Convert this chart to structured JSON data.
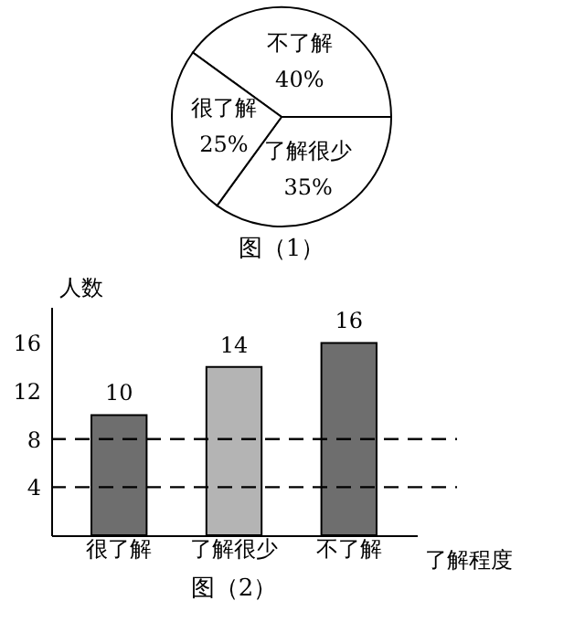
{
  "chart_data": [
    {
      "type": "pie",
      "title": "图（1）",
      "categories": [
        "不了解",
        "了解很少",
        "很了解"
      ],
      "values": [
        40,
        35,
        25
      ],
      "value_labels": [
        "40%",
        "35%",
        "25%"
      ],
      "colors": [
        "#ffffff",
        "#ffffff",
        "#ffffff"
      ]
    },
    {
      "type": "bar",
      "title": "图（2）",
      "xlabel": "了解程度",
      "ylabel": "人数",
      "categories": [
        "很了解",
        "了解很少",
        "不了解"
      ],
      "values": [
        10,
        14,
        16
      ],
      "colors": [
        "#6e6e6e",
        "#b4b4b4",
        "#6e6e6e"
      ],
      "ylim": [
        0,
        19
      ],
      "yticks": [
        4,
        8,
        12,
        16
      ],
      "data_labels": true,
      "ref_lines": [
        {
          "axis": "y",
          "value": 8,
          "line_style": "dashed",
          "color": "#000000"
        },
        {
          "axis": "y",
          "value": 4,
          "line_style": "dashed",
          "color": "#000000"
        }
      ]
    }
  ]
}
